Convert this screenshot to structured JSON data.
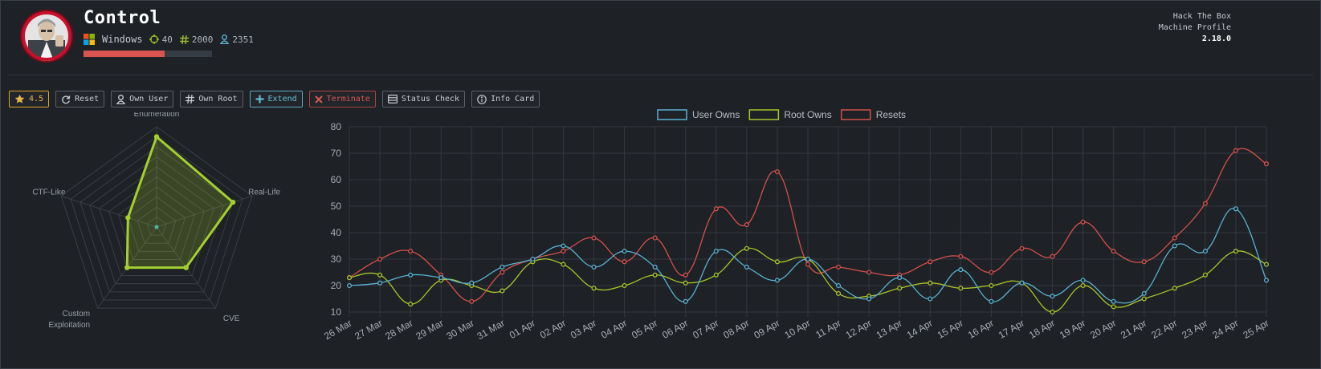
{
  "machine": {
    "name": "Control",
    "os": "Windows",
    "points": "40",
    "root_owns": "2000",
    "user_owns": "2351",
    "difficulty_fraction": 0.63
  },
  "corner": {
    "line1": "Hack The Box",
    "line2": "Machine Profile",
    "version": "2.18.0"
  },
  "toolbar": {
    "rating": "4.5",
    "reset": "Reset",
    "own_user": "Own User",
    "own_root": "Own Root",
    "extend": "Extend",
    "terminate": "Terminate",
    "status_check": "Status Check",
    "info_card": "Info Card"
  },
  "colors": {
    "user": "#5bb0d0",
    "root": "#aac42a",
    "resets": "#d3504c",
    "radar": "#a4cf2f",
    "rating": "#e8b54a"
  },
  "radar_chart": {
    "type": "radar",
    "axes": [
      "Enumeration",
      "Real-Life",
      "CVE",
      "Custom Exploitation",
      "CTF-Like"
    ],
    "axis_label_lines": [
      [
        "Enumeration"
      ],
      [
        "Real-Life"
      ],
      [
        "CVE"
      ],
      [
        "Custom",
        "Exploitation"
      ],
      [
        "CTF-Like"
      ]
    ],
    "values": [
      9,
      8,
      5,
      5,
      3
    ],
    "max": 10
  },
  "chart_data": {
    "type": "line",
    "categories": [
      "26 Mar",
      "27 Mar",
      "28 Mar",
      "29 Mar",
      "30 Mar",
      "31 Mar",
      "01 Apr",
      "02 Apr",
      "03 Apr",
      "04 Apr",
      "05 Apr",
      "06 Apr",
      "07 Apr",
      "08 Apr",
      "09 Apr",
      "10 Apr",
      "11 Apr",
      "12 Apr",
      "13 Apr",
      "14 Apr",
      "15 Apr",
      "16 Apr",
      "17 Apr",
      "18 Apr",
      "19 Apr",
      "20 Apr",
      "21 Apr",
      "22 Apr",
      "23 Apr",
      "24 Apr",
      "25 Apr"
    ],
    "series": [
      {
        "name": "User Owns",
        "values": [
          20,
          21,
          24,
          23,
          21,
          27,
          30,
          35,
          27,
          33,
          27,
          14,
          33,
          27,
          22,
          30,
          20,
          15,
          23,
          15,
          26,
          14,
          21,
          16,
          22,
          14,
          17,
          35,
          33,
          49,
          22
        ]
      },
      {
        "name": "Root Owns",
        "values": [
          23,
          24,
          13,
          22,
          20,
          18,
          29,
          28,
          19,
          20,
          24,
          21,
          24,
          34,
          29,
          30,
          17,
          16,
          19,
          21,
          19,
          20,
          21,
          10,
          20,
          12,
          15,
          19,
          24,
          33,
          28
        ]
      },
      {
        "name": "Resets",
        "values": [
          23,
          30,
          33,
          24,
          14,
          25,
          30,
          33,
          38,
          29,
          38,
          24,
          49,
          43,
          63,
          28,
          27,
          25,
          24,
          29,
          31,
          25,
          34,
          31,
          44,
          33,
          29,
          38,
          51,
          71,
          66
        ]
      }
    ],
    "ylim": [
      10,
      80
    ],
    "yticks": [
      10,
      20,
      30,
      40,
      50,
      60,
      70,
      80
    ],
    "legend_position": "top",
    "grid": true
  }
}
